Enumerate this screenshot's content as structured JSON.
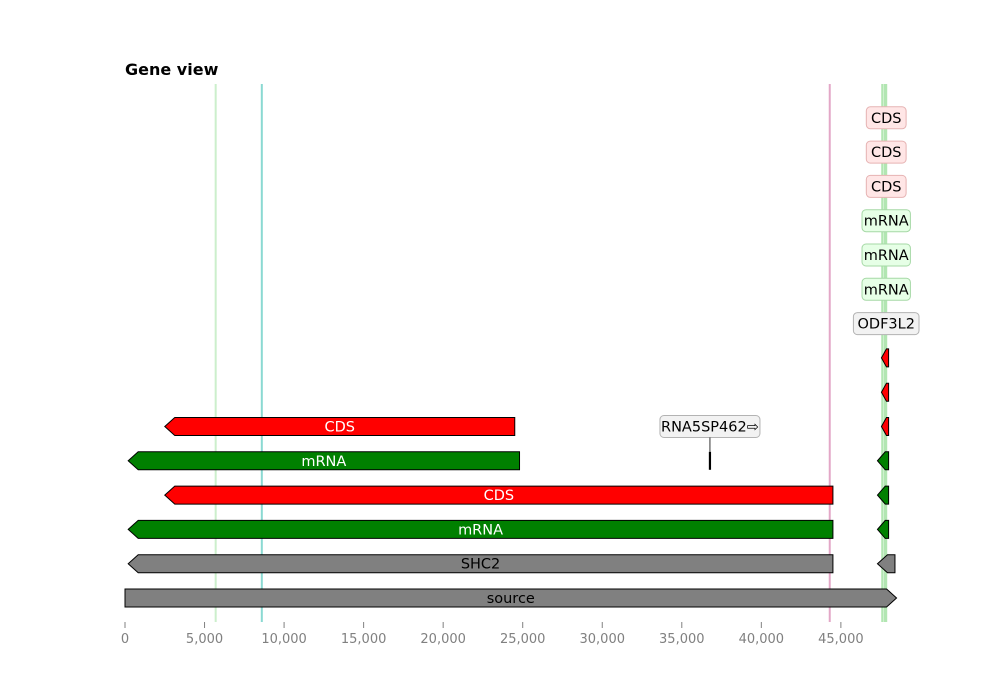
{
  "title": "Gene view",
  "chart_data": {
    "type": "gene-track",
    "xlim": [
      0,
      48000
    ],
    "ticks": [
      0,
      5000,
      10000,
      15000,
      20000,
      25000,
      30000,
      35000,
      40000,
      45000
    ],
    "tick_labels": [
      "0",
      "5,000",
      "10,000",
      "15,000",
      "20,000",
      "25,000",
      "30,000",
      "35,000",
      "40,000",
      "45,000"
    ],
    "vlines": [
      {
        "x": 5700,
        "color": "#ccefcc"
      },
      {
        "x": 8600,
        "color": "#8ad9d2"
      },
      {
        "x": 44300,
        "color": "#e3a7c7"
      },
      {
        "x": 47600,
        "color": "#b2e6b2"
      },
      {
        "x": 47750,
        "color": "#b2e6b2"
      },
      {
        "x": 47850,
        "color": "#b2e6b2"
      }
    ],
    "features": [
      {
        "label": "source",
        "start": 0,
        "end": 48500,
        "strand": 1,
        "level": 0,
        "color": "#808080",
        "text_color": "#000000",
        "show_label": true
      },
      {
        "label": "SHC2",
        "start": 200,
        "end": 44500,
        "strand": -1,
        "level": 1,
        "color": "#808080",
        "text_color": "#000000",
        "show_label": true
      },
      {
        "label": "mRNA",
        "start": 200,
        "end": 44500,
        "strand": -1,
        "level": 2,
        "color": "#008000",
        "text_color": "#ffffff",
        "show_label": true
      },
      {
        "label": "CDS",
        "start": 2500,
        "end": 44500,
        "strand": -1,
        "level": 3,
        "color": "#ff0000",
        "text_color": "#ffffff",
        "show_label": true
      },
      {
        "label": "mRNA",
        "start": 200,
        "end": 24800,
        "strand": -1,
        "level": 4,
        "color": "#008000",
        "text_color": "#ffffff",
        "show_label": true
      },
      {
        "label": "CDS",
        "start": 2500,
        "end": 24500,
        "strand": -1,
        "level": 5,
        "color": "#ff0000",
        "text_color": "#ffffff",
        "show_label": true
      },
      {
        "label": "",
        "start": 47300,
        "end": 48400,
        "strand": -1,
        "level": 1,
        "color": "#808080",
        "show_label": false
      },
      {
        "label": "",
        "start": 47300,
        "end": 48000,
        "strand": -1,
        "level": 2,
        "color": "#008000",
        "show_label": false
      },
      {
        "label": "",
        "start": 47300,
        "end": 48000,
        "strand": -1,
        "level": 3,
        "color": "#008000",
        "show_label": false
      },
      {
        "label": "",
        "start": 47300,
        "end": 48000,
        "strand": -1,
        "level": 4,
        "color": "#008000",
        "show_label": false
      },
      {
        "label": "",
        "start": 47550,
        "end": 48000,
        "strand": -1,
        "level": 5,
        "color": "#ff0000",
        "show_label": false
      },
      {
        "label": "",
        "start": 47550,
        "end": 48000,
        "strand": -1,
        "level": 6,
        "color": "#ff0000",
        "show_label": false
      },
      {
        "label": "",
        "start": 47550,
        "end": 48000,
        "strand": -1,
        "level": 7,
        "color": "#ff0000",
        "show_label": false
      },
      {
        "label": "",
        "start": 36720,
        "end": 36820,
        "strand": 1,
        "level": 4,
        "color": "#000000",
        "show_label": false,
        "thin": true
      }
    ],
    "boxed_labels": [
      {
        "label": "RNA5SP462⇨",
        "x": 36770,
        "level": 5,
        "bg": "#f2f2f2",
        "border": "#b3b3b3"
      },
      {
        "label": "ODF3L2",
        "x": 47850,
        "level": 8,
        "bg": "#f2f2f2",
        "border": "#b3b3b3"
      },
      {
        "label": "mRNA",
        "x": 47850,
        "level": 9,
        "bg": "#e6ffe6",
        "border": "#a6d9a6"
      },
      {
        "label": "mRNA",
        "x": 47850,
        "level": 10,
        "bg": "#e6ffe6",
        "border": "#a6d9a6"
      },
      {
        "label": "mRNA",
        "x": 47850,
        "level": 11,
        "bg": "#e6ffe6",
        "border": "#a6d9a6"
      },
      {
        "label": "CDS",
        "x": 47850,
        "level": 12,
        "bg": "#ffe6e6",
        "border": "#e6b3b3"
      },
      {
        "label": "CDS",
        "x": 47850,
        "level": 13,
        "bg": "#ffe6e6",
        "border": "#e6b3b3"
      },
      {
        "label": "CDS",
        "x": 47850,
        "level": 14,
        "bg": "#ffe6e6",
        "border": "#e6b3b3"
      }
    ]
  }
}
